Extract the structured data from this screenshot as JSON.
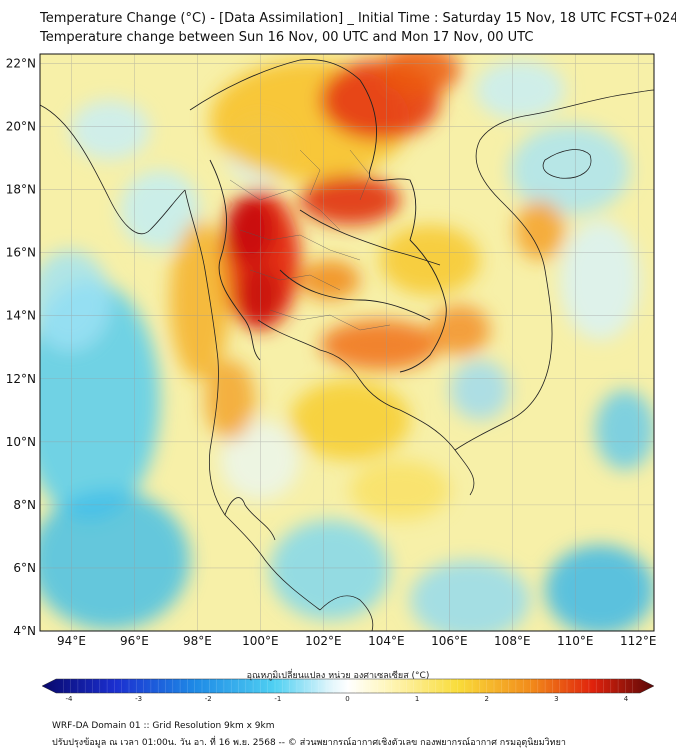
{
  "title": {
    "line1": "Temperature Change (°C) - [Data Assimilation] _ Initial Time : Saturday 15 Nov, 18 UTC FCST+024",
    "line2": "Temperature change between Sun 16 Nov, 00 UTC and Mon 17 Nov, 00 UTC"
  },
  "map": {
    "lat_labels": [
      "22°N",
      "20°N",
      "18°N",
      "16°N",
      "14°N",
      "12°N",
      "10°N",
      "8°N",
      "6°N",
      "4°N"
    ],
    "lon_labels": [
      "94°E",
      "96°E",
      "98°E",
      "100°E",
      "102°E",
      "104°E",
      "106°E",
      "108°E",
      "110°E",
      "112°E"
    ],
    "lat_range": [
      4,
      22.3
    ],
    "lon_range": [
      93,
      112.5
    ],
    "gridlines": true
  },
  "colorbar": {
    "title": "อุณหภูมิเปลี่ยนแปลง หน่วย องศาเซลเซียส (°C)",
    "ticks": [
      "-4",
      "-3",
      "-2",
      "-1",
      "0",
      "1",
      "2",
      "3",
      "4"
    ],
    "range": [
      -4,
      4
    ],
    "colors": {
      "min": "#08086b",
      "cold": "#1fb8e8",
      "neutral": "#ffffff",
      "warm": "#f5d020",
      "hot": "#e82a0a",
      "max": "#5a0808"
    }
  },
  "footer": {
    "line1": "WRF-DA Domain 01 :: Grid Resolution 9km x 9km",
    "line2": "ปรับปรุงข้อมูล ณ เวลา 01:00น. วัน อา. ที่ 16 พ.ย. 2568 -- © ส่วนพยากรณ์อากาศเชิงตัวเลข กองพยากรณ์อากาศ กรมอุตุนิยมวิทยา"
  }
}
